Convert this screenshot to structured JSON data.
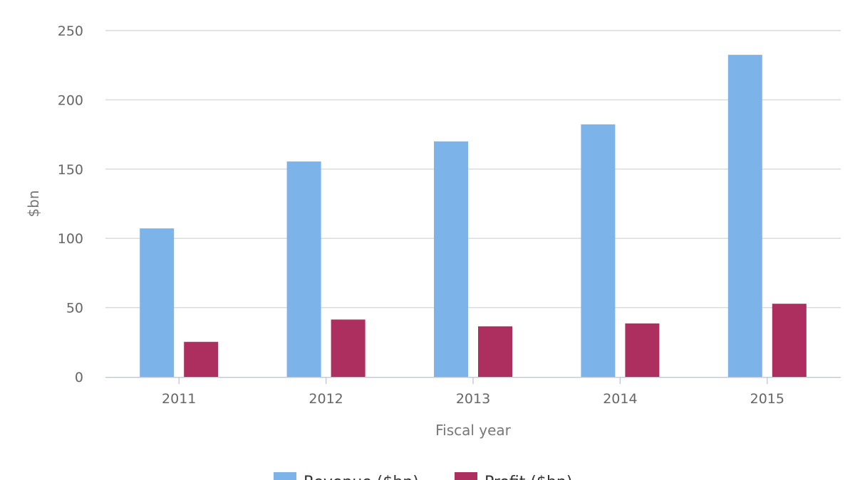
{
  "chart_data": {
    "type": "bar",
    "categories": [
      "2011",
      "2012",
      "2013",
      "2014",
      "2015"
    ],
    "series": [
      {
        "name": "Revenue ($bn)",
        "color": "#7cb4ea",
        "values": [
          107.2,
          155.5,
          170.0,
          182.3,
          232.5
        ]
      },
      {
        "name": "Profit ($bn)",
        "color": "#ad2f5f",
        "values": [
          25.3,
          41.4,
          36.5,
          38.6,
          52.8
        ]
      }
    ],
    "title": "",
    "xlabel": "Fiscal year",
    "ylabel": "$bn",
    "ylim": [
      0,
      250
    ],
    "yticks": [
      0,
      50,
      100,
      150,
      200,
      250
    ],
    "grid": true,
    "legend": "bottom-center"
  }
}
